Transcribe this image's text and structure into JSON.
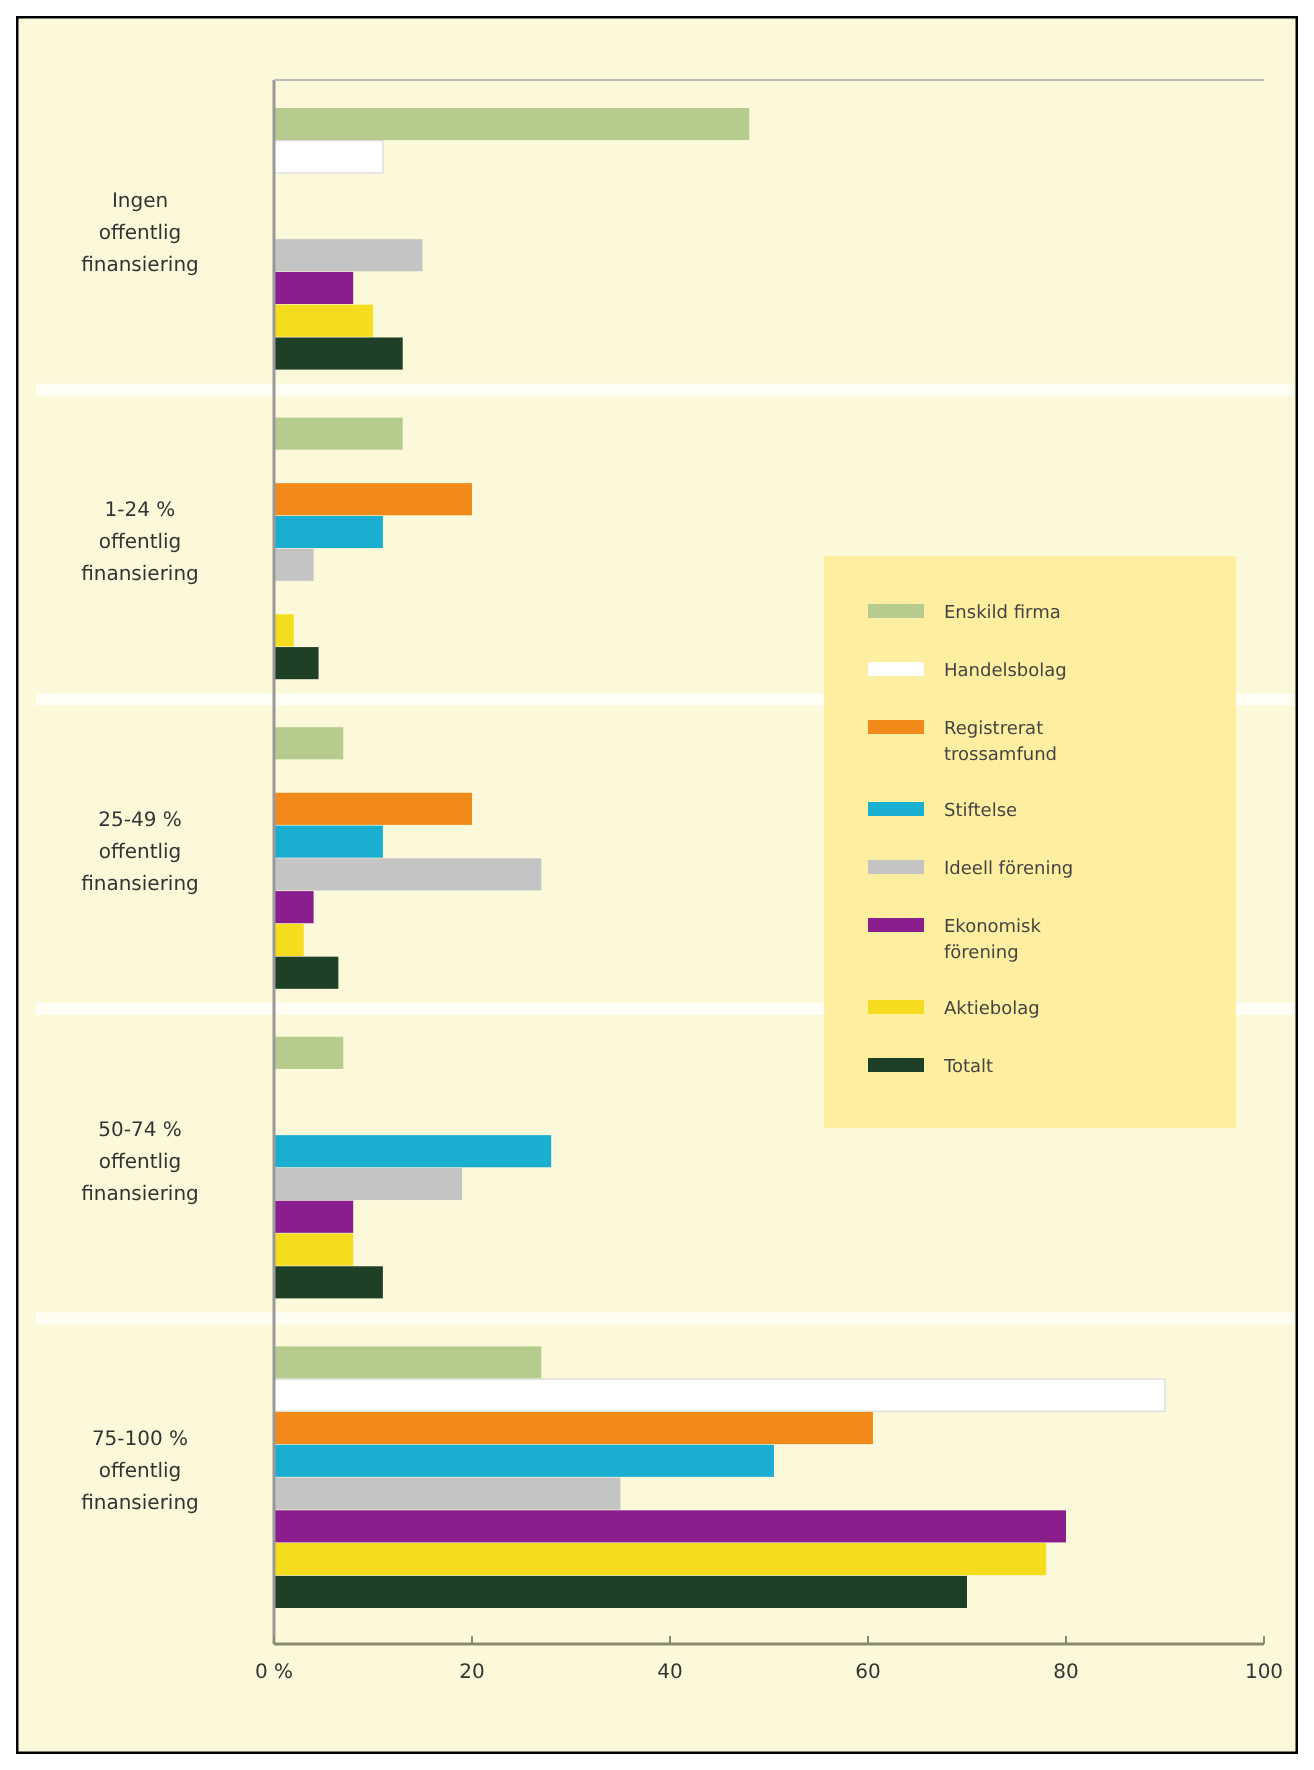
{
  "chart_data": {
    "type": "bar",
    "orientation": "horizontal",
    "categories": [
      "Ingen offentlig finansiering",
      "1-24 % offentlig finansiering",
      "25-49 % offentlig finansiering",
      "50-74 % offentlig finansiering",
      "75-100 % offentlig finansiering"
    ],
    "series": [
      {
        "name": "Enskild firma",
        "color": "#b5cc8e",
        "values": [
          48,
          13,
          7,
          7,
          27
        ]
      },
      {
        "name": "Handelsbolag",
        "color": "#ffffff",
        "values": [
          11,
          null,
          null,
          null,
          90
        ]
      },
      {
        "name": "Registrerat trossamfund",
        "color": "#f28a1a",
        "values": [
          null,
          20,
          20,
          null,
          60.5
        ]
      },
      {
        "name": "Stiftelse",
        "color": "#1aaed0",
        "values": [
          null,
          11,
          11,
          28,
          50.5
        ]
      },
      {
        "name": "Ideell förening",
        "color": "#c4c4c4",
        "values": [
          15,
          4,
          27,
          19,
          35
        ]
      },
      {
        "name": "Ekonomisk förening",
        "color": "#8b1e8f",
        "values": [
          8,
          null,
          4,
          8,
          80
        ]
      },
      {
        "name": "Aktiebolag",
        "color": "#f5dc1e",
        "values": [
          10,
          2,
          3,
          8,
          78
        ]
      },
      {
        "name": "Totalt",
        "color": "#1d4026",
        "values": [
          13,
          4.5,
          6.5,
          11,
          70
        ]
      }
    ],
    "xlim": [
      0,
      100
    ],
    "xticks": [
      {
        "value": 0,
        "label": "0 %"
      },
      20,
      40,
      60,
      80,
      100
    ],
    "legend": "right"
  }
}
